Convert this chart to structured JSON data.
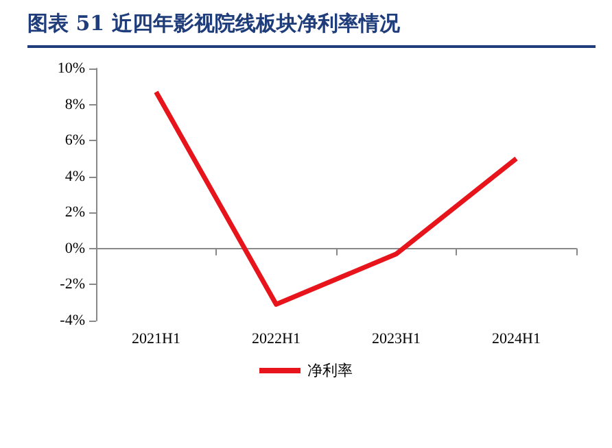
{
  "chart_data": {
    "type": "line",
    "title": "图表 51  近四年影视院线板块净利率情况",
    "categories": [
      "2021H1",
      "2022H1",
      "2023H1",
      "2024H1"
    ],
    "series": [
      {
        "name": "净利率",
        "color": "#e8141c",
        "values": [
          8.7,
          -3.1,
          -0.3,
          5.0
        ]
      }
    ],
    "ylim": [
      -4,
      10
    ],
    "yticks": [
      {
        "value": -4,
        "label": "-4%"
      },
      {
        "value": -2,
        "label": "-2%"
      },
      {
        "value": 0,
        "label": "0%"
      },
      {
        "value": 2,
        "label": "2%"
      },
      {
        "value": 4,
        "label": "4%"
      },
      {
        "value": 6,
        "label": "6%"
      },
      {
        "value": 8,
        "label": "8%"
      },
      {
        "value": 10,
        "label": "10%"
      }
    ],
    "legend": "bottom",
    "marker": "none",
    "line_style": "solid"
  }
}
